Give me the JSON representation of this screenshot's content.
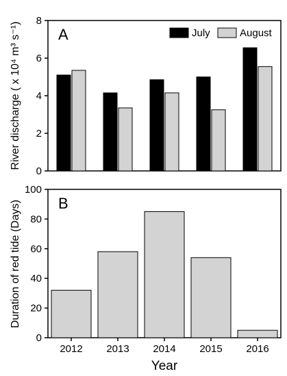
{
  "chart_data": [
    {
      "type": "bar",
      "panel": "A",
      "categories": [
        "2012",
        "2013",
        "2014",
        "2015",
        "2016"
      ],
      "series": [
        {
          "name": "July",
          "values": [
            5.1,
            4.15,
            4.85,
            5.0,
            6.55
          ],
          "color": "#000000"
        },
        {
          "name": "August",
          "values": [
            5.35,
            3.35,
            4.15,
            3.25,
            5.55
          ],
          "color": "#d3d3d3"
        }
      ],
      "ylabel": "River discharge ( x 10⁴ m³ s⁻¹)",
      "ylim": [
        0,
        8
      ],
      "yticks": [
        "0",
        "2",
        "4",
        "6",
        "8"
      ],
      "legend_position": "top-right",
      "grid": false
    },
    {
      "type": "bar",
      "panel": "B",
      "categories": [
        "2012",
        "2013",
        "2014",
        "2015",
        "2016"
      ],
      "values": [
        32,
        58,
        85,
        54,
        5
      ],
      "color": "#d3d3d3",
      "xlabel": "Year",
      "ylabel": "Duration of red tide (Days)",
      "ylim": [
        0,
        100
      ],
      "yticks": [
        "0",
        "20",
        "40",
        "60",
        "80",
        "100"
      ],
      "grid": false
    }
  ]
}
